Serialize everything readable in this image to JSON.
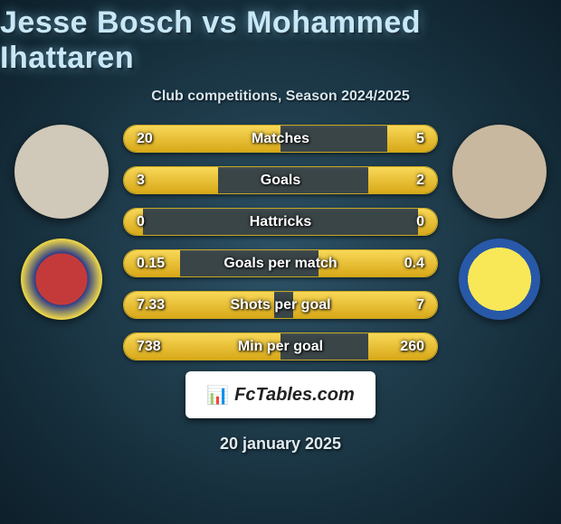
{
  "title": "Jesse Bosch vs Mohammed Ihattaren",
  "subtitle": "Club competitions, Season 2024/2025",
  "date": "20 january 2025",
  "brand": "FcTables.com",
  "colors": {
    "bar_bg": "#3a4548",
    "bar_fill_top": "#f8d858",
    "bar_fill_bottom": "#d8a818",
    "bar_border": "#c8a820",
    "title_color": "#c8e8f8",
    "text_color": "#ffffff",
    "background_inner": "#2d5266",
    "background_outer": "#0d1f2a"
  },
  "players": {
    "left": {
      "name": "Jesse Bosch",
      "club": "Willem II"
    },
    "right": {
      "name": "Mohammed Ihattaren",
      "club": "RKC Waalwijk"
    }
  },
  "stats": [
    {
      "label": "Matches",
      "left_val": "20",
      "right_val": "5",
      "left_pct": 50,
      "right_pct": 16
    },
    {
      "label": "Goals",
      "left_val": "3",
      "right_val": "2",
      "left_pct": 30,
      "right_pct": 22
    },
    {
      "label": "Hattricks",
      "left_val": "0",
      "right_val": "0",
      "left_pct": 6,
      "right_pct": 6
    },
    {
      "label": "Goals per match",
      "left_val": "0.15",
      "right_val": "0.4",
      "left_pct": 18,
      "right_pct": 38
    },
    {
      "label": "Shots per goal",
      "left_val": "7.33",
      "right_val": "7",
      "left_pct": 48,
      "right_pct": 46
    },
    {
      "label": "Min per goal",
      "left_val": "738",
      "right_val": "260",
      "left_pct": 50,
      "right_pct": 22
    }
  ]
}
